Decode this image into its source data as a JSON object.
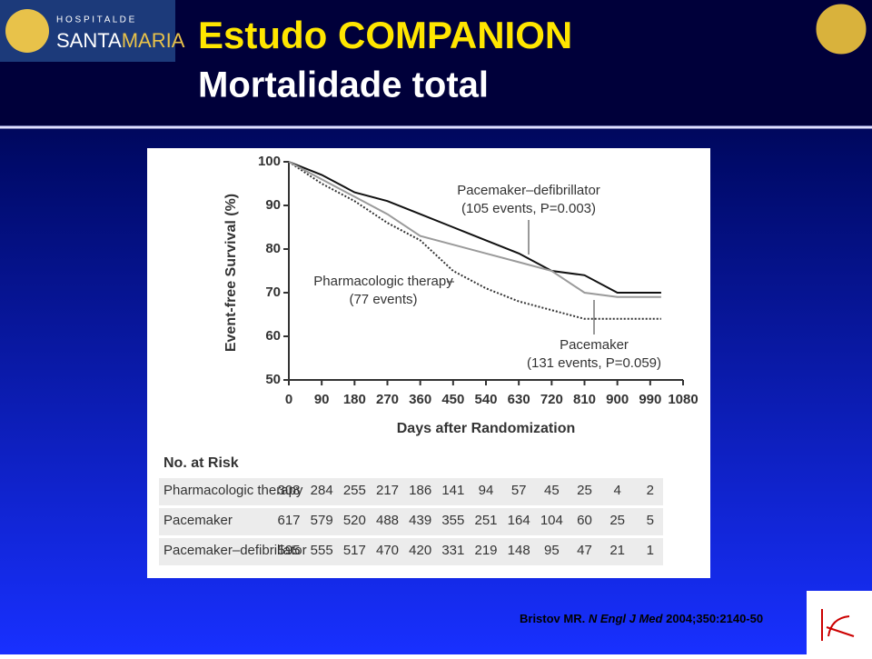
{
  "slide": {
    "title": "Estudo COMPANION",
    "subtitle": "Mortalidade total",
    "logo_small": "H O S P I T A L   D E",
    "logo_name": "SANTA",
    "logo_name2": "MARIA",
    "citation": {
      "author": "Bristov MR.",
      "journal": "N Engl J Med",
      "ref": "2004;350:2140-50"
    }
  },
  "chart_data": {
    "type": "line",
    "y_label": "Event-free Survival (%)",
    "x_label": "Days after Randomization",
    "x": [
      0,
      90,
      180,
      270,
      360,
      450,
      540,
      630,
      720,
      810,
      900,
      990,
      1020
    ],
    "series": [
      {
        "name": "Pacemaker–defibrillator",
        "color": "#111111",
        "dash": "none",
        "note": "(105 events, P=0.003)",
        "values": [
          100,
          97,
          93,
          91,
          88,
          85,
          82,
          79,
          75,
          74,
          70,
          70,
          70
        ]
      },
      {
        "name": "Pharmacologic therapy",
        "color": "#333333",
        "dash": "2 2",
        "note": "(77 events)",
        "values": [
          100,
          95,
          91,
          86,
          82,
          75,
          71,
          68,
          66,
          64,
          64,
          64,
          64
        ]
      },
      {
        "name": "Pacemaker",
        "color": "#9a9a9a",
        "dash": "none",
        "note": "(131 events, P=0.059)",
        "values": [
          100,
          96,
          92,
          88,
          83,
          81,
          79,
          77,
          75,
          70,
          69,
          69,
          69
        ]
      }
    ],
    "xlim": [
      0,
      1080
    ],
    "xticks": [
      0,
      90,
      180,
      270,
      360,
      450,
      540,
      630,
      720,
      810,
      900,
      990,
      1080
    ],
    "ylim": [
      50,
      100
    ],
    "yticks": [
      50,
      60,
      70,
      80,
      90,
      100
    ]
  },
  "risk_table": {
    "title": "No. at Risk",
    "rows": [
      {
        "label": "Pharmacologic therapy",
        "values": [
          "308",
          "284",
          "255",
          "217",
          "186",
          "141",
          "94",
          "57",
          "45",
          "25",
          "4",
          "2"
        ]
      },
      {
        "label": "Pacemaker",
        "values": [
          "617",
          "579",
          "520",
          "488",
          "439",
          "355",
          "251",
          "164",
          "104",
          "60",
          "25",
          "5"
        ]
      },
      {
        "label": "Pacemaker–defibrillator",
        "values": [
          "595",
          "555",
          "517",
          "470",
          "420",
          "331",
          "219",
          "148",
          "95",
          "47",
          "21",
          "1"
        ]
      }
    ]
  }
}
